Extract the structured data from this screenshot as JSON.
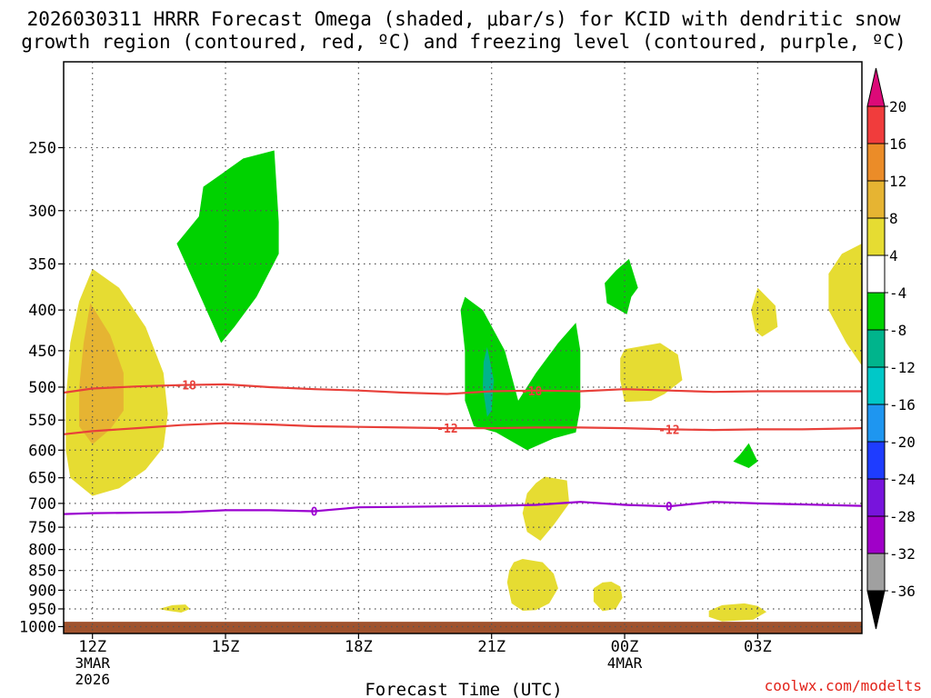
{
  "chart_data": {
    "type": "contour",
    "title_lines": [
      "2026030311 HRRR Forecast Omega (shaded, μbar/s) for KCID with dendritic snow",
      "growth region (contoured, red, ºC) and freezing level (contoured, purple, ºC)"
    ],
    "xlabel": "Forecast Time (UTC)",
    "credit": "coolwx.com/modelts",
    "x_range_hours": [
      -0.65,
      17.35
    ],
    "x_ticks": [
      {
        "hour": 0,
        "label": "12Z",
        "date1": "3MAR",
        "date2": "2026"
      },
      {
        "hour": 3,
        "label": "15Z"
      },
      {
        "hour": 6,
        "label": "18Z"
      },
      {
        "hour": 9,
        "label": "21Z"
      },
      {
        "hour": 12,
        "label": "00Z",
        "date1": "4MAR"
      },
      {
        "hour": 15,
        "label": "03Z"
      }
    ],
    "y_pressure_range_hpa": [
      195,
      1020
    ],
    "y_ticks": [
      250,
      300,
      350,
      400,
      450,
      500,
      550,
      600,
      650,
      700,
      750,
      800,
      850,
      900,
      950,
      1000
    ],
    "colorbar": {
      "levels": [
        20,
        16,
        12,
        8,
        4,
        -4,
        -8,
        -12,
        -16,
        -20,
        -24,
        -28,
        -32,
        -36
      ],
      "colors": [
        "#dc0a78",
        "#f03c3c",
        "#eb8c28",
        "#e6b432",
        "#e6dc32",
        "#ffffff",
        "#00d200",
        "#00b48c",
        "#00c8c8",
        "#1e96f0",
        "#1e3cff",
        "#7814dc",
        "#a000c8",
        "#a0a0a0",
        "#000000"
      ]
    },
    "contours": [
      {
        "name": "-18",
        "color": "#e8403a",
        "label": "-18",
        "points": [
          [
            -0.65,
            508
          ],
          [
            0,
            502
          ],
          [
            1,
            499
          ],
          [
            2,
            497
          ],
          [
            3,
            496
          ],
          [
            4,
            500
          ],
          [
            5,
            503
          ],
          [
            6,
            505
          ],
          [
            7,
            508
          ],
          [
            8,
            510
          ],
          [
            9,
            506
          ],
          [
            10,
            505
          ],
          [
            11,
            506
          ],
          [
            12,
            503
          ],
          [
            13,
            505
          ],
          [
            14,
            507
          ],
          [
            15,
            506
          ],
          [
            16,
            506
          ],
          [
            17.35,
            506
          ]
        ],
        "label_hours": [
          2.1,
          9.9
        ]
      },
      {
        "name": "-12",
        "color": "#e8403a",
        "label": "-12",
        "points": [
          [
            -0.65,
            573
          ],
          [
            0,
            568
          ],
          [
            1,
            563
          ],
          [
            2,
            558
          ],
          [
            3,
            555
          ],
          [
            4,
            557
          ],
          [
            5,
            560
          ],
          [
            6,
            561
          ],
          [
            7,
            562
          ],
          [
            8,
            563
          ],
          [
            9,
            563
          ],
          [
            10,
            562
          ],
          [
            11,
            562
          ],
          [
            12,
            563
          ],
          [
            13,
            565
          ],
          [
            14,
            566
          ],
          [
            15,
            565
          ],
          [
            16,
            565
          ],
          [
            17.35,
            563
          ]
        ],
        "label_hours": [
          8.0,
          13.0
        ]
      },
      {
        "name": "0",
        "color": "#9b00d0",
        "label": "0",
        "points": [
          [
            -0.65,
            722
          ],
          [
            0,
            720
          ],
          [
            1,
            719
          ],
          [
            2,
            718
          ],
          [
            3,
            714
          ],
          [
            4,
            714
          ],
          [
            5,
            716
          ],
          [
            6,
            708
          ],
          [
            7,
            707
          ],
          [
            8,
            706
          ],
          [
            9,
            705
          ],
          [
            10,
            703
          ],
          [
            11,
            697
          ],
          [
            12,
            703
          ],
          [
            13,
            706
          ],
          [
            14,
            697
          ],
          [
            15,
            700
          ],
          [
            16,
            702
          ],
          [
            17.35,
            705
          ]
        ],
        "label_hours": [
          5.0,
          13.0
        ]
      }
    ],
    "regions": [
      {
        "level": "4 to 8",
        "color": "#e6dc32",
        "points": [
          [
            0.0,
            355
          ],
          [
            0.6,
            375
          ],
          [
            1.2,
            420
          ],
          [
            1.6,
            480
          ],
          [
            1.7,
            540
          ],
          [
            1.6,
            595
          ],
          [
            1.2,
            635
          ],
          [
            0.6,
            670
          ],
          [
            0.0,
            685
          ],
          [
            -0.5,
            650
          ],
          [
            -0.6,
            600
          ],
          [
            -0.6,
            520
          ],
          [
            -0.5,
            440
          ],
          [
            -0.3,
            390
          ]
        ]
      },
      {
        "level": "8 to 12",
        "color": "#e6b432",
        "points": [
          [
            -0.05,
            392
          ],
          [
            0.4,
            430
          ],
          [
            0.7,
            480
          ],
          [
            0.7,
            535
          ],
          [
            0.4,
            565
          ],
          [
            0.0,
            590
          ],
          [
            -0.3,
            560
          ],
          [
            -0.3,
            500
          ],
          [
            -0.2,
            440
          ]
        ]
      },
      {
        "level": "-4 to -8",
        "color": "#00d200",
        "points": [
          [
            2.9,
            270
          ],
          [
            3.4,
            258
          ],
          [
            4.1,
            252
          ],
          [
            4.2,
            310
          ],
          [
            4.2,
            340
          ],
          [
            3.7,
            385
          ],
          [
            3.2,
            420
          ],
          [
            2.9,
            440
          ],
          [
            2.3,
            370
          ],
          [
            1.9,
            330
          ],
          [
            2.4,
            305
          ],
          [
            2.5,
            280
          ]
        ]
      },
      {
        "level": "-4 to -8",
        "color": "#00d200",
        "points": [
          [
            8.4,
            385
          ],
          [
            8.8,
            400
          ],
          [
            9.3,
            450
          ],
          [
            9.6,
            520
          ],
          [
            10.0,
            480
          ],
          [
            10.5,
            440
          ],
          [
            10.9,
            415
          ],
          [
            11.0,
            450
          ],
          [
            11.0,
            530
          ],
          [
            10.9,
            570
          ],
          [
            10.4,
            580
          ],
          [
            9.8,
            600
          ],
          [
            9.1,
            570
          ],
          [
            8.6,
            560
          ],
          [
            8.4,
            520
          ],
          [
            8.4,
            450
          ],
          [
            8.3,
            400
          ]
        ]
      },
      {
        "level": "-8 to -12",
        "color": "#00b48c",
        "points": [
          [
            8.9,
            445
          ],
          [
            9.05,
            490
          ],
          [
            9.0,
            535
          ],
          [
            8.9,
            545
          ],
          [
            8.8,
            500
          ],
          [
            8.82,
            465
          ]
        ]
      },
      {
        "level": "-4 to -8",
        "color": "#00d200",
        "points": [
          [
            12.1,
            345
          ],
          [
            12.3,
            375
          ],
          [
            12.15,
            385
          ],
          [
            12.05,
            405
          ],
          [
            11.6,
            392
          ],
          [
            11.55,
            370
          ],
          [
            11.8,
            357
          ]
        ]
      },
      {
        "level": "-4 to -8",
        "color": "#00d200",
        "points": [
          [
            14.8,
            588
          ],
          [
            14.95,
            612
          ],
          [
            15.0,
            620
          ],
          [
            14.8,
            632
          ],
          [
            14.45,
            620
          ],
          [
            14.6,
            608
          ]
        ]
      },
      {
        "level": "4 to 8",
        "color": "#e6dc32",
        "points": [
          [
            12.0,
            448
          ],
          [
            12.8,
            440
          ],
          [
            13.2,
            455
          ],
          [
            13.3,
            490
          ],
          [
            12.9,
            510
          ],
          [
            12.6,
            520
          ],
          [
            12.0,
            522
          ],
          [
            11.9,
            490
          ],
          [
            11.9,
            460
          ]
        ]
      },
      {
        "level": "4 to 8",
        "color": "#e6dc32",
        "points": [
          [
            15.0,
            375
          ],
          [
            15.4,
            395
          ],
          [
            15.45,
            420
          ],
          [
            15.1,
            432
          ],
          [
            14.95,
            425
          ],
          [
            14.85,
            400
          ]
        ]
      },
      {
        "level": "4 to 8",
        "color": "#e6dc32",
        "points": [
          [
            17.35,
            330
          ],
          [
            16.9,
            340
          ],
          [
            16.6,
            360
          ],
          [
            16.6,
            400
          ],
          [
            17.0,
            440
          ],
          [
            17.35,
            470
          ]
        ]
      },
      {
        "level": "4 to 8",
        "color": "#e6dc32",
        "points": [
          [
            10.2,
            648
          ],
          [
            10.7,
            655
          ],
          [
            10.75,
            700
          ],
          [
            10.4,
            745
          ],
          [
            10.1,
            780
          ],
          [
            9.8,
            760
          ],
          [
            9.7,
            720
          ],
          [
            9.8,
            680
          ],
          [
            10.0,
            660
          ]
        ]
      },
      {
        "level": "4 to 8",
        "color": "#e6dc32",
        "points": [
          [
            9.7,
            822
          ],
          [
            10.15,
            830
          ],
          [
            10.4,
            858
          ],
          [
            10.5,
            895
          ],
          [
            10.3,
            935
          ],
          [
            10.0,
            953
          ],
          [
            9.7,
            955
          ],
          [
            9.45,
            935
          ],
          [
            9.35,
            880
          ],
          [
            9.4,
            850
          ],
          [
            9.5,
            830
          ]
        ]
      },
      {
        "level": "4 to 8",
        "color": "#e6dc32",
        "points": [
          [
            11.7,
            878
          ],
          [
            11.9,
            890
          ],
          [
            11.95,
            920
          ],
          [
            11.8,
            950
          ],
          [
            11.5,
            956
          ],
          [
            11.3,
            930
          ],
          [
            11.3,
            895
          ],
          [
            11.5,
            880
          ]
        ]
      },
      {
        "level": "4 to 8",
        "color": "#e6dc32",
        "points": [
          [
            14.7,
            935
          ],
          [
            15.0,
            942
          ],
          [
            15.2,
            958
          ],
          [
            14.9,
            980
          ],
          [
            14.2,
            985
          ],
          [
            13.9,
            972
          ],
          [
            13.9,
            955
          ],
          [
            14.2,
            940
          ]
        ]
      },
      {
        "level": "4 to 8",
        "color": "#e6dc32",
        "points": [
          [
            1.8,
            940
          ],
          [
            2.1,
            938
          ],
          [
            2.2,
            950
          ],
          [
            2.0,
            960
          ],
          [
            1.7,
            955
          ],
          [
            1.5,
            950
          ]
        ]
      }
    ],
    "ground_level_hpa": 986
  }
}
